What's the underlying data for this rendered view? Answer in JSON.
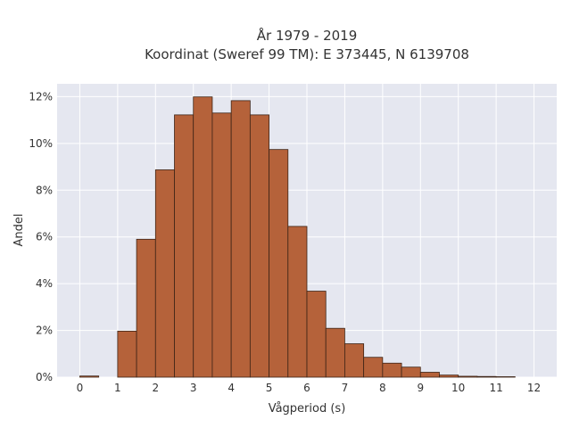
{
  "chart_data": {
    "type": "bar",
    "title_line1": "År 1979 - 2019",
    "title_line2": "Koordinat (Sweref 99 TM): E 373445, N 6139708",
    "xlabel": "Vågperiod (s)",
    "ylabel": "Andel",
    "bin_width": 0.5,
    "bin_starts": [
      0,
      1,
      1.5,
      2,
      2.5,
      3,
      3.5,
      4,
      4.5,
      5,
      5.5,
      6,
      6.5,
      7,
      7.5,
      8,
      8.5,
      9,
      9.5,
      10,
      10.5,
      11
    ],
    "values": [
      0.0005,
      0.0197,
      0.059,
      0.0887,
      0.1122,
      0.1199,
      0.113,
      0.1183,
      0.1122,
      0.0974,
      0.0645,
      0.0368,
      0.0209,
      0.0143,
      0.0085,
      0.006,
      0.0043,
      0.0021,
      0.0009,
      0.0004,
      0.0003,
      0.0002
    ],
    "xlim": [
      -0.6,
      12.6
    ],
    "ylim": [
      0,
      0.1255
    ],
    "x_ticks": [
      0,
      1,
      2,
      3,
      4,
      5,
      6,
      7,
      8,
      9,
      10,
      11,
      12
    ],
    "x_tick_labels": [
      "0",
      "1",
      "2",
      "3",
      "4",
      "5",
      "6",
      "7",
      "8",
      "9",
      "10",
      "11",
      "12"
    ],
    "y_ticks": [
      0,
      0.02,
      0.04,
      0.06,
      0.08,
      0.1,
      0.12
    ],
    "y_tick_labels": [
      "0%",
      "2%",
      "4%",
      "6%",
      "8%",
      "10%",
      "12%"
    ],
    "grid": true,
    "colors": {
      "bar_fill": "#b5623a",
      "bar_stroke": "#3d2416",
      "plot_bg": "#e5e7f0",
      "grid": "#ffffff"
    }
  }
}
